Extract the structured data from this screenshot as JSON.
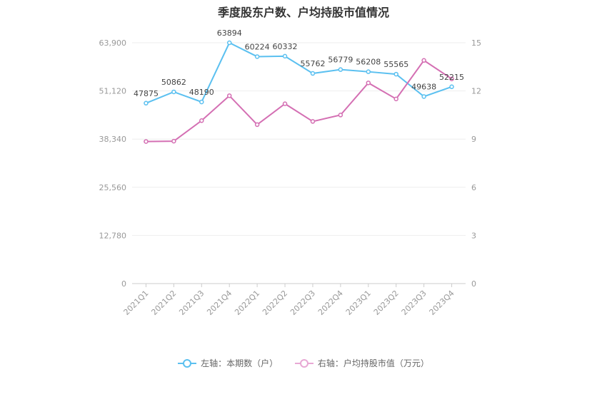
{
  "chart_data": {
    "type": "line",
    "title": "季度股东户数、户均持股市值情况",
    "categories": [
      "2021Q1",
      "2021Q2",
      "2021Q3",
      "2021Q4",
      "2022Q1",
      "2022Q2",
      "2022Q3",
      "2022Q4",
      "2023Q1",
      "2023Q2",
      "2023Q3",
      "2023Q4"
    ],
    "left_axis": {
      "ticks": [
        "0",
        "12,780",
        "25,560",
        "38,340",
        "51,120",
        "63,900"
      ],
      "ylim": [
        0,
        63900
      ]
    },
    "right_axis": {
      "ticks": [
        "0",
        "3",
        "6",
        "9",
        "12",
        "15"
      ],
      "ylim": [
        0,
        15
      ]
    },
    "series": [
      {
        "name": "左轴：本期数（户）",
        "axis": "left",
        "color": "#5bc0f0",
        "values": [
          47875,
          50862,
          48190,
          63894,
          60224,
          60332,
          55762,
          56779,
          56208,
          55565,
          49638,
          52215
        ],
        "labels": [
          "47875",
          "50862",
          "48190",
          "63894",
          "60224",
          "60332",
          "55762",
          "56779",
          "56208",
          "55565",
          "49638",
          "52215"
        ]
      },
      {
        "name": "右轴：户均持股市值（万元）",
        "axis": "right",
        "color": "#d46fb3",
        "values": [
          8.85,
          8.87,
          10.15,
          11.7,
          9.9,
          11.2,
          10.1,
          10.5,
          12.5,
          11.5,
          13.9,
          12.75
        ]
      }
    ],
    "grid": true,
    "legend_position": "bottom"
  }
}
